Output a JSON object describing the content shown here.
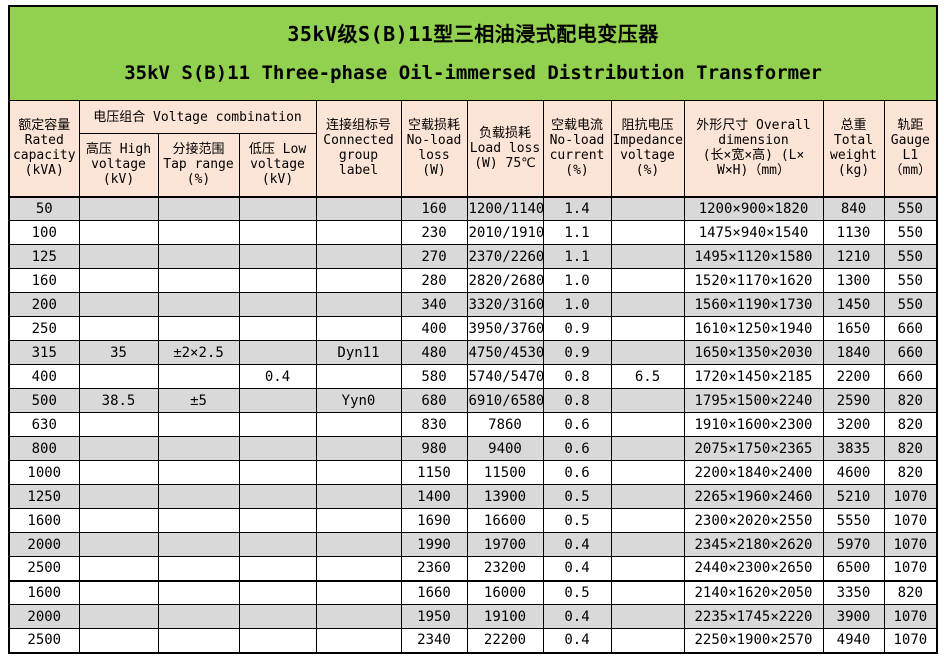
{
  "title": {
    "line1": "35kV级S(B)11型三相油浸式配电变压器",
    "line2": "35kV S(B)11 Three-phase Oil-immersed Distribution Transformer"
  },
  "colors": {
    "title_bg": "#92D050",
    "header_bg": "#FCE4D6",
    "stripe_bg": "#D9D9D9",
    "border": "#000000"
  },
  "header": {
    "rated_capacity": "额定容量\nRated\ncapacity\n(kVA)",
    "voltage_combination": "电压组合 Voltage combination",
    "high_voltage": "高压 High\nvoltage\n(kV)",
    "tap_range": "分接范围\nTap range\n(%)",
    "low_voltage": "低压 Low\nvoltage\n(kV)",
    "connected_group": "连接组标号\nConnected\ngroup\nlabel",
    "no_load_loss": "空载损耗\nNo-load\nloss\n(W)",
    "load_loss": "负载损耗\nLoad loss\n(W) 75℃",
    "no_load_current": "空载电流\nNo-load\ncurrent\n(%)",
    "impedance_voltage": "阻抗电压\nImpedance\nvoltage\n(%)",
    "overall_dimension": "外形尺寸 Overall\ndimension\n(长×宽×高) (L×\nW×H)（mm）",
    "total_weight": "总重\nTotal\nweight\n(kg)",
    "gauge": "轨距\nGauge\nL1\n（mm）"
  },
  "rows": [
    {
      "capacity": "50",
      "hv": "",
      "tap": "",
      "lv": "",
      "group": "",
      "nll": "160",
      "ll": "1200/1140",
      "nlc": "1.4",
      "imp": "",
      "dim": "1200×900×1820",
      "weight": "840",
      "gauge": "550",
      "shaded": true,
      "group_start": false
    },
    {
      "capacity": "100",
      "hv": "",
      "tap": "",
      "lv": "",
      "group": "",
      "nll": "230",
      "ll": "2010/1910",
      "nlc": "1.1",
      "imp": "",
      "dim": "1475×940×1540",
      "weight": "1130",
      "gauge": "550",
      "shaded": false,
      "group_start": false
    },
    {
      "capacity": "125",
      "hv": "",
      "tap": "",
      "lv": "",
      "group": "",
      "nll": "270",
      "ll": "2370/2260",
      "nlc": "1.1",
      "imp": "",
      "dim": "1495×1120×1580",
      "weight": "1210",
      "gauge": "550",
      "shaded": true,
      "group_start": false
    },
    {
      "capacity": "160",
      "hv": "",
      "tap": "",
      "lv": "",
      "group": "",
      "nll": "280",
      "ll": "2820/2680",
      "nlc": "1.0",
      "imp": "",
      "dim": "1520×1170×1620",
      "weight": "1300",
      "gauge": "550",
      "shaded": false,
      "group_start": false
    },
    {
      "capacity": "200",
      "hv": "",
      "tap": "",
      "lv": "",
      "group": "",
      "nll": "340",
      "ll": "3320/3160",
      "nlc": "1.0",
      "imp": "",
      "dim": "1560×1190×1730",
      "weight": "1450",
      "gauge": "550",
      "shaded": true,
      "group_start": false
    },
    {
      "capacity": "250",
      "hv": "",
      "tap": "",
      "lv": "",
      "group": "",
      "nll": "400",
      "ll": "3950/3760",
      "nlc": "0.9",
      "imp": "",
      "dim": "1610×1250×1940",
      "weight": "1650",
      "gauge": "660",
      "shaded": false,
      "group_start": false
    },
    {
      "capacity": "315",
      "hv": "35",
      "tap": "±2×2.5",
      "lv": "",
      "group": "Dyn11",
      "nll": "480",
      "ll": "4750/4530",
      "nlc": "0.9",
      "imp": "",
      "dim": "1650×1350×2030",
      "weight": "1840",
      "gauge": "660",
      "shaded": true,
      "group_start": false
    },
    {
      "capacity": "400",
      "hv": "",
      "tap": "",
      "lv": "0.4",
      "group": "",
      "nll": "580",
      "ll": "5740/5470",
      "nlc": "0.8",
      "imp": "6.5",
      "dim": "1720×1450×2185",
      "weight": "2200",
      "gauge": "660",
      "shaded": false,
      "group_start": false
    },
    {
      "capacity": "500",
      "hv": "38.5",
      "tap": "±5",
      "lv": "",
      "group": "Yyn0",
      "nll": "680",
      "ll": "6910/6580",
      "nlc": "0.8",
      "imp": "",
      "dim": "1795×1500×2240",
      "weight": "2590",
      "gauge": "820",
      "shaded": true,
      "group_start": false
    },
    {
      "capacity": "630",
      "hv": "",
      "tap": "",
      "lv": "",
      "group": "",
      "nll": "830",
      "ll": "7860",
      "nlc": "0.6",
      "imp": "",
      "dim": "1910×1600×2300",
      "weight": "3200",
      "gauge": "820",
      "shaded": false,
      "group_start": false
    },
    {
      "capacity": "800",
      "hv": "",
      "tap": "",
      "lv": "",
      "group": "",
      "nll": "980",
      "ll": "9400",
      "nlc": "0.6",
      "imp": "",
      "dim": "2075×1750×2365",
      "weight": "3835",
      "gauge": "820",
      "shaded": true,
      "group_start": false
    },
    {
      "capacity": "1000",
      "hv": "",
      "tap": "",
      "lv": "",
      "group": "",
      "nll": "1150",
      "ll": "11500",
      "nlc": "0.6",
      "imp": "",
      "dim": "2200×1840×2400",
      "weight": "4600",
      "gauge": "820",
      "shaded": false,
      "group_start": false
    },
    {
      "capacity": "1250",
      "hv": "",
      "tap": "",
      "lv": "",
      "group": "",
      "nll": "1400",
      "ll": "13900",
      "nlc": "0.5",
      "imp": "",
      "dim": "2265×1960×2460",
      "weight": "5210",
      "gauge": "1070",
      "shaded": true,
      "group_start": false
    },
    {
      "capacity": "1600",
      "hv": "",
      "tap": "",
      "lv": "",
      "group": "",
      "nll": "1690",
      "ll": "16600",
      "nlc": "0.5",
      "imp": "",
      "dim": "2300×2020×2550",
      "weight": "5550",
      "gauge": "1070",
      "shaded": false,
      "group_start": false
    },
    {
      "capacity": "2000",
      "hv": "",
      "tap": "",
      "lv": "",
      "group": "",
      "nll": "1990",
      "ll": "19700",
      "nlc": "0.4",
      "imp": "",
      "dim": "2345×2180×2620",
      "weight": "5970",
      "gauge": "1070",
      "shaded": true,
      "group_start": false
    },
    {
      "capacity": "2500",
      "hv": "",
      "tap": "",
      "lv": "",
      "group": "",
      "nll": "2360",
      "ll": "23200",
      "nlc": "0.4",
      "imp": "",
      "dim": "2440×2300×2650",
      "weight": "6500",
      "gauge": "1070",
      "shaded": false,
      "group_start": false
    },
    {
      "capacity": "1600",
      "hv": "",
      "tap": "",
      "lv": "",
      "group": "",
      "nll": "1660",
      "ll": "16000",
      "nlc": "0.5",
      "imp": "",
      "dim": "2140×1620×2050",
      "weight": "3350",
      "gauge": "820",
      "shaded": false,
      "group_start": true
    },
    {
      "capacity": "2000",
      "hv": "",
      "tap": "",
      "lv": "",
      "group": "",
      "nll": "1950",
      "ll": "19100",
      "nlc": "0.4",
      "imp": "",
      "dim": "2235×1745×2220",
      "weight": "3900",
      "gauge": "1070",
      "shaded": true,
      "group_start": false
    },
    {
      "capacity": "2500",
      "hv": "",
      "tap": "",
      "lv": "",
      "group": "",
      "nll": "2340",
      "ll": "22200",
      "nlc": "0.4",
      "imp": "",
      "dim": "2250×1900×2570",
      "weight": "4940",
      "gauge": "1070",
      "shaded": false,
      "group_start": false
    }
  ]
}
